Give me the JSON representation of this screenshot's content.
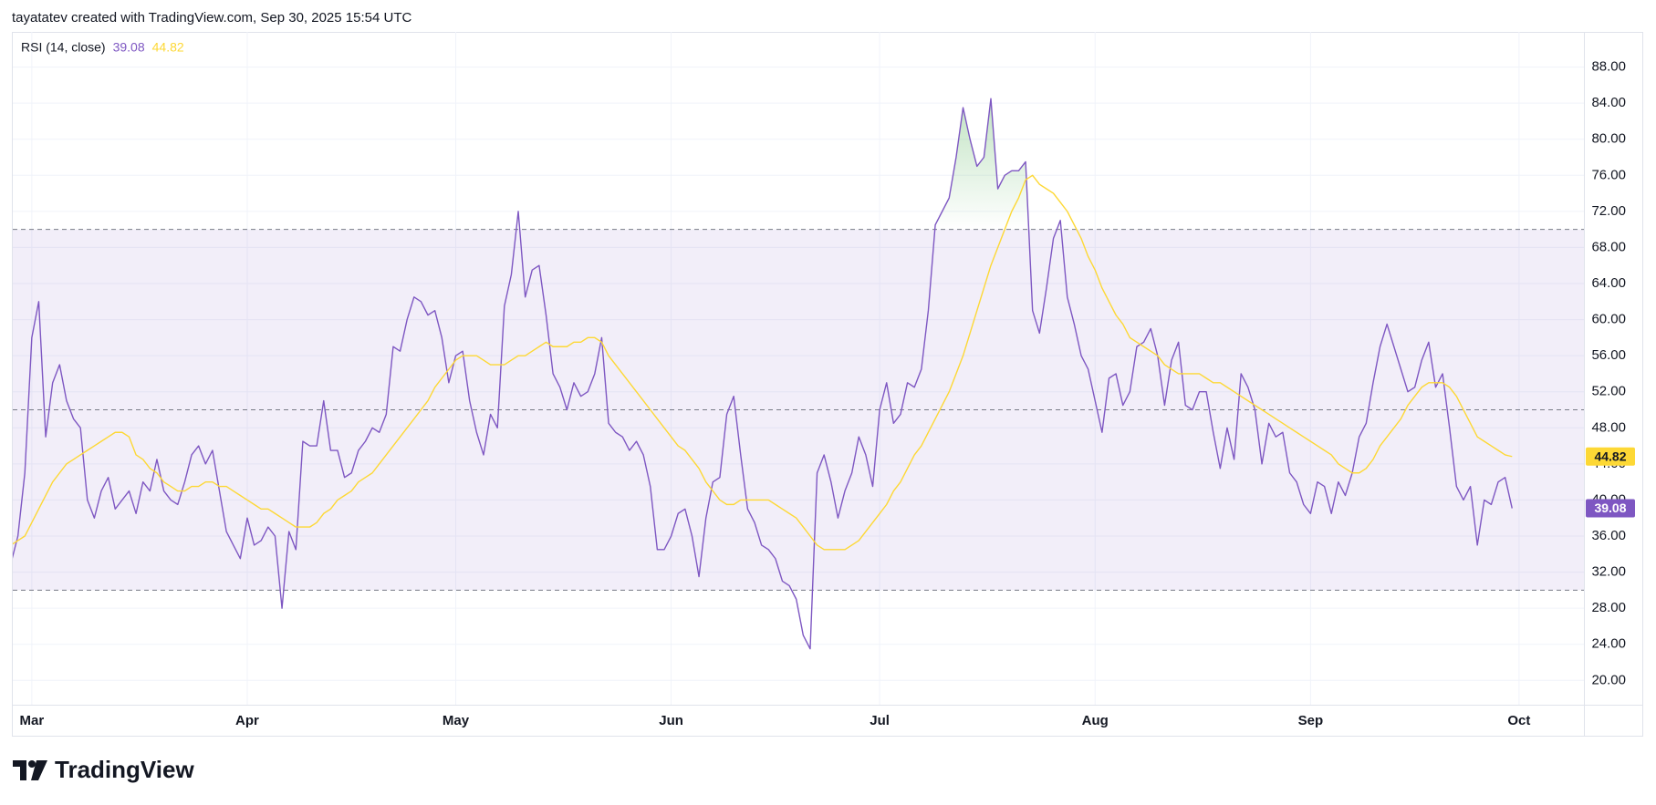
{
  "header": "tayatatev created with TradingView.com, Sep 30, 2025 15:54 UTC",
  "footer": {
    "brand": "TradingView"
  },
  "chart_data": {
    "type": "line",
    "categories": [
      null,
      null,
      null,
      "Mar",
      null,
      null,
      null,
      null,
      null,
      null,
      null,
      null,
      null,
      null,
      null,
      null,
      null,
      null,
      null,
      null,
      null,
      null,
      null,
      null,
      null,
      null,
      null,
      null,
      null,
      null,
      null,
      null,
      null,
      null,
      "Apr",
      null,
      null,
      null,
      null,
      null,
      null,
      null,
      null,
      null,
      null,
      null,
      null,
      null,
      null,
      null,
      null,
      null,
      null,
      null,
      null,
      null,
      null,
      null,
      null,
      null,
      null,
      null,
      null,
      null,
      "May",
      null,
      null,
      null,
      null,
      null,
      null,
      null,
      null,
      null,
      null,
      null,
      null,
      null,
      null,
      null,
      null,
      null,
      null,
      null,
      null,
      null,
      null,
      null,
      null,
      null,
      null,
      null,
      null,
      null,
      null,
      "Jun",
      null,
      null,
      null,
      null,
      null,
      null,
      null,
      null,
      null,
      null,
      null,
      null,
      null,
      null,
      null,
      null,
      null,
      null,
      null,
      null,
      null,
      null,
      null,
      null,
      null,
      null,
      null,
      null,
      null,
      "Jul",
      null,
      null,
      null,
      null,
      null,
      null,
      null,
      null,
      null,
      null,
      null,
      null,
      null,
      null,
      null,
      null,
      null,
      null,
      null,
      null,
      null,
      null,
      null,
      null,
      null,
      null,
      null,
      null,
      null,
      null,
      "Aug",
      null,
      null,
      null,
      null,
      null,
      null,
      null,
      null,
      null,
      null,
      null,
      null,
      null,
      null,
      null,
      null,
      null,
      null,
      null,
      null,
      null,
      null,
      null,
      null,
      null,
      null,
      null,
      null,
      null,
      null,
      "Sep",
      null,
      null,
      null,
      null,
      null,
      null,
      null,
      null,
      null,
      null,
      null,
      null,
      null,
      null,
      null,
      null,
      null,
      null,
      null,
      null,
      null,
      null,
      null,
      null,
      null,
      null,
      null,
      null,
      null,
      "Oct"
    ],
    "series": [
      {
        "name": "RSI (14, close)",
        "color": "#7e57c2",
        "values": [
          33,
          36,
          43,
          58,
          62,
          47,
          53,
          55,
          51,
          49,
          48,
          40,
          38,
          41,
          42.5,
          39,
          40,
          41,
          38.5,
          42,
          41,
          44.5,
          41,
          40,
          39.5,
          42,
          45,
          46,
          44,
          45.5,
          41,
          36.5,
          35,
          33.5,
          38,
          35,
          35.5,
          37,
          36,
          28,
          36.5,
          34.5,
          46.5,
          46,
          46,
          51,
          45.5,
          45.5,
          42.5,
          43,
          45.5,
          46.5,
          48,
          47.5,
          49.5,
          57,
          56.5,
          60,
          62.5,
          62,
          60.5,
          61,
          58,
          53,
          56,
          56.5,
          51,
          47.5,
          45,
          49.5,
          48,
          61.5,
          65,
          72,
          62.5,
          65.5,
          66,
          60.5,
          54,
          52.5,
          50,
          53,
          51.5,
          52,
          54,
          58,
          48.5,
          47.5,
          47,
          45.5,
          46.5,
          45,
          41.5,
          34.5,
          34.5,
          36,
          38.5,
          39,
          36,
          31.5,
          38,
          42,
          42.5,
          49.5,
          51.5,
          45,
          39,
          37.5,
          35,
          34.5,
          33.5,
          31,
          30.5,
          29,
          25,
          23.5,
          43,
          45,
          42,
          38,
          41,
          43,
          47,
          45,
          41.5,
          50,
          53,
          48.5,
          49.5,
          53,
          52.5,
          54.5,
          61,
          70.5,
          72,
          73.5,
          78,
          83.5,
          80,
          77,
          78,
          84.5,
          74.5,
          76,
          76.5,
          76.5,
          77.5,
          61,
          58.5,
          63.5,
          69,
          71,
          62.5,
          59.5,
          56,
          54.5,
          51,
          47.5,
          53.5,
          54,
          50.5,
          52,
          57,
          57.5,
          59,
          56,
          50.5,
          55.5,
          57.5,
          50.5,
          50,
          52,
          52,
          47.5,
          43.5,
          48,
          44.5,
          54,
          52.5,
          50,
          44,
          48.5,
          47,
          47.5,
          43,
          42,
          39.5,
          38.5,
          42,
          41.5,
          38.5,
          42,
          40.5,
          43,
          47,
          48.5,
          53,
          57,
          59.5,
          57,
          54.5,
          52,
          52.5,
          55.5,
          57.5,
          52.5,
          54,
          48,
          41.5,
          40,
          41.5,
          35,
          40,
          39.5,
          42,
          42.5,
          39.08,
          null
        ]
      },
      {
        "color": "#fdd835",
        "values": [
          35,
          35.5,
          36,
          37.5,
          39,
          40.5,
          42,
          43,
          44,
          44.5,
          45,
          45.5,
          46,
          46.5,
          47,
          47.5,
          47.5,
          47,
          45,
          44.5,
          43.5,
          43,
          42,
          41.5,
          41,
          41,
          41.5,
          41.5,
          42,
          42,
          41.5,
          41.5,
          41,
          40.5,
          40,
          39.5,
          39,
          39,
          38.5,
          38,
          37.5,
          37,
          37,
          37,
          37.5,
          38.5,
          39,
          40,
          40.5,
          41,
          42,
          42.5,
          43,
          44,
          45,
          46,
          47,
          48,
          49,
          50,
          51,
          52.5,
          53.5,
          54.5,
          55.5,
          56,
          56,
          56,
          55.5,
          55,
          55,
          55,
          55.5,
          56,
          56,
          56.5,
          57,
          57.5,
          57,
          57,
          57,
          57.5,
          57.5,
          58,
          58,
          57.5,
          56,
          55,
          54,
          53,
          52,
          51,
          50,
          49,
          48,
          47,
          46,
          45.5,
          44.5,
          43.5,
          42,
          41,
          40,
          39.5,
          39.5,
          40,
          40,
          40,
          40,
          40,
          39.5,
          39,
          38.5,
          38,
          37,
          36,
          35,
          34.5,
          34.5,
          34.5,
          34.5,
          35,
          35.5,
          36.5,
          37.5,
          38.5,
          39.5,
          41,
          42,
          43.5,
          45,
          46,
          47.5,
          49,
          50.5,
          52,
          54,
          56,
          58.5,
          61,
          63.5,
          66,
          68,
          70,
          72,
          73.5,
          75.5,
          76,
          75,
          74.5,
          74,
          73,
          72,
          70.5,
          69,
          67,
          65.5,
          63.5,
          62,
          60.5,
          59.5,
          58,
          57.5,
          57,
          56.5,
          56,
          55,
          54.5,
          54,
          54,
          54,
          54,
          53.5,
          53,
          53,
          52.5,
          52,
          51.5,
          51,
          50.5,
          50,
          49.5,
          49,
          48.5,
          48,
          47.5,
          47,
          46.5,
          46,
          45.5,
          45,
          44,
          43.5,
          43,
          43,
          43.5,
          44.5,
          46,
          47,
          48,
          49,
          50.5,
          51.5,
          52.5,
          53,
          53,
          53,
          52.5,
          51.5,
          50,
          48.5,
          47,
          46.5,
          46,
          45.5,
          45,
          44.82,
          null
        ]
      }
    ],
    "ylim": [
      17.3,
      91.9
    ],
    "yticks": [
      {
        "value": 20,
        "label": "20.00"
      },
      {
        "value": 24,
        "label": "24.00"
      },
      {
        "value": 28,
        "label": "28.00"
      },
      {
        "value": 32,
        "label": "32.00"
      },
      {
        "value": 36,
        "label": "36.00"
      },
      {
        "value": 40,
        "label": "40.00"
      },
      {
        "value": 44,
        "label": "44.00"
      },
      {
        "value": 48,
        "label": "48.00"
      },
      {
        "value": 52,
        "label": "52.00"
      },
      {
        "value": 56,
        "label": "56.00"
      },
      {
        "value": 60,
        "label": "60.00"
      },
      {
        "value": 64,
        "label": "64.00"
      },
      {
        "value": 68,
        "label": "68.00"
      },
      {
        "value": 72,
        "label": "72.00"
      },
      {
        "value": 76,
        "label": "76.00"
      },
      {
        "value": 80,
        "label": "80.00"
      },
      {
        "value": 84,
        "label": "84.00"
      },
      {
        "value": 88,
        "label": "88.00"
      }
    ],
    "levels": [
      70,
      50,
      30
    ],
    "band_color": "#7e57c2",
    "overbought_fill": "#4caf50",
    "grid": true
  }
}
